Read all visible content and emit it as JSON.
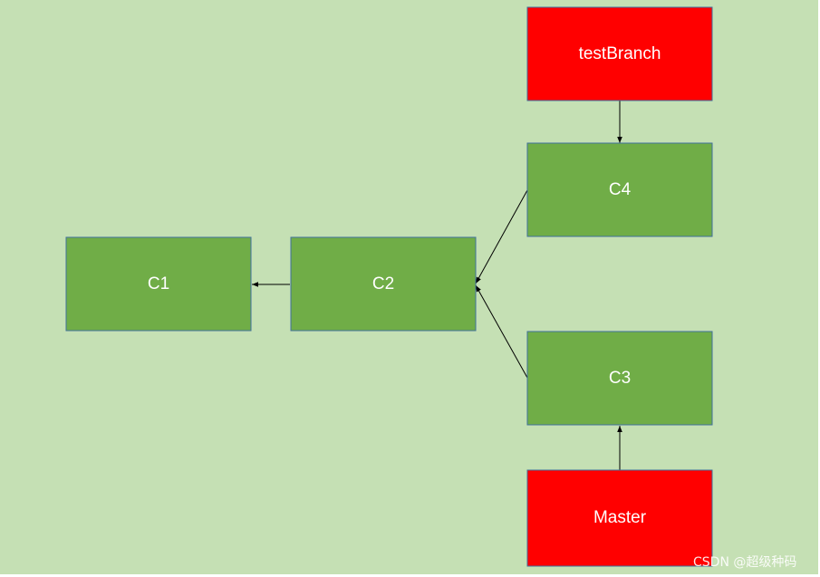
{
  "diagram": {
    "colors": {
      "background": "#c5e0b4",
      "commit_fill": "#70ad47",
      "branch_fill": "#ff0000",
      "border": "#41719c",
      "edge": "#000000",
      "label": "#ffffff"
    },
    "nodes": {
      "c1": "C1",
      "c2": "C2",
      "c3": "C3",
      "c4": "C4",
      "test_branch": "testBranch",
      "master": "Master"
    },
    "edges": [
      {
        "from": "c2",
        "to": "c1"
      },
      {
        "from": "c4",
        "to": "c2"
      },
      {
        "from": "c3",
        "to": "c2"
      },
      {
        "from": "test_branch",
        "to": "c4"
      },
      {
        "from": "master",
        "to": "c3"
      }
    ]
  },
  "watermark": "CSDN @超级种码"
}
